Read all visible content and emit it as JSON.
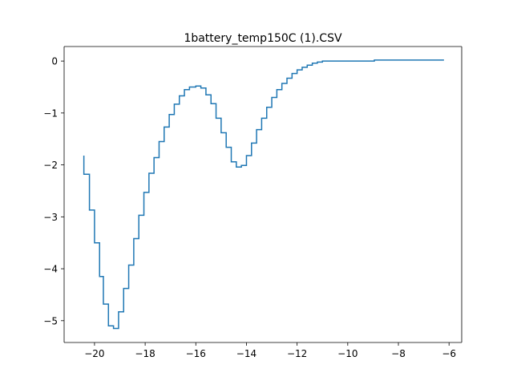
{
  "chart_data": {
    "type": "line",
    "title": "1battery_temp150C (1).CSV",
    "xlabel": "",
    "ylabel": "",
    "xlim": [
      -21.2,
      -5.5
    ],
    "ylim": [
      -5.42,
      0.28
    ],
    "xticks": [
      -20,
      -18,
      -16,
      -14,
      -12,
      -10,
      -8,
      -6
    ],
    "yticks": [
      -5,
      -4,
      -3,
      -2,
      -1,
      0
    ],
    "grid": false,
    "legend": "none",
    "color": "#1f77b4",
    "series": [
      {
        "step": "post",
        "points": [
          [
            -20.42,
            -1.82
          ],
          [
            -20.42,
            -2.18
          ],
          [
            -20.2,
            -2.87
          ],
          [
            -20.0,
            -3.5
          ],
          [
            -19.8,
            -4.15
          ],
          [
            -19.65,
            -4.68
          ],
          [
            -19.45,
            -5.1
          ],
          [
            -19.25,
            -5.15
          ],
          [
            -19.05,
            -4.83
          ],
          [
            -18.85,
            -4.38
          ],
          [
            -18.65,
            -3.93
          ],
          [
            -18.45,
            -3.42
          ],
          [
            -18.25,
            -2.97
          ],
          [
            -18.05,
            -2.53
          ],
          [
            -17.85,
            -2.16
          ],
          [
            -17.65,
            -1.86
          ],
          [
            -17.45,
            -1.55
          ],
          [
            -17.25,
            -1.27
          ],
          [
            -17.05,
            -1.03
          ],
          [
            -16.85,
            -0.83
          ],
          [
            -16.65,
            -0.67
          ],
          [
            -16.45,
            -0.55
          ],
          [
            -16.25,
            -0.5
          ],
          [
            -16.0,
            -0.48
          ],
          [
            -15.8,
            -0.52
          ],
          [
            -15.6,
            -0.65
          ],
          [
            -15.4,
            -0.82
          ],
          [
            -15.2,
            -1.1
          ],
          [
            -15.0,
            -1.38
          ],
          [
            -14.8,
            -1.66
          ],
          [
            -14.6,
            -1.94
          ],
          [
            -14.4,
            -2.04
          ],
          [
            -14.2,
            -2.01
          ],
          [
            -14.0,
            -1.82
          ],
          [
            -13.8,
            -1.58
          ],
          [
            -13.6,
            -1.32
          ],
          [
            -13.4,
            -1.1
          ],
          [
            -13.2,
            -0.89
          ],
          [
            -13.0,
            -0.7
          ],
          [
            -12.8,
            -0.55
          ],
          [
            -12.6,
            -0.43
          ],
          [
            -12.4,
            -0.33
          ],
          [
            -12.2,
            -0.24
          ],
          [
            -12.0,
            -0.17
          ],
          [
            -11.8,
            -0.12
          ],
          [
            -11.6,
            -0.08
          ],
          [
            -11.4,
            -0.04
          ],
          [
            -11.2,
            -0.02
          ],
          [
            -11.0,
            0.0
          ],
          [
            -8.95,
            0.0
          ],
          [
            -8.95,
            0.02
          ],
          [
            -6.2,
            0.02
          ]
        ]
      }
    ]
  }
}
